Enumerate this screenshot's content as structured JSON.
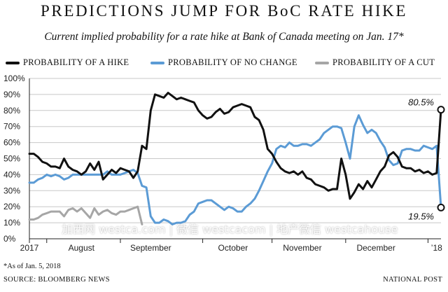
{
  "header": {
    "title": "PREDICTIONS JUMP FOR BoC RATE HIKE",
    "subtitle": "Current implied probability for a rate hike at Bank of Canada meeting on Jan. 17*"
  },
  "footer": {
    "footnote": "*As of Jan. 5, 2018",
    "source": "SOURCE: BLOOMBERG NEWS",
    "credit": "NATIONAL POST"
  },
  "watermark": "加西网 westca.com | 微信 westcacom | 地产微信 westcahouse",
  "colors": {
    "hike": "#111111",
    "no_change": "#5b9bd5",
    "cut": "#a6a6a6",
    "grid": "#c8c8c8",
    "background": "#ffffff"
  },
  "chart_data": {
    "type": "line",
    "x_unit": "trading-day index (0 = start of 2017 data, ~Jul 2017; 95 = Jan. 5, 2018)",
    "xlim": [
      0,
      95
    ],
    "ylim": [
      0,
      100
    ],
    "y_tick_labels": [
      "0%",
      "10%",
      "20%",
      "30%",
      "40%",
      "50%",
      "60%",
      "70%",
      "80%",
      "90%",
      "100%"
    ],
    "y_ticks": [
      0,
      10,
      20,
      30,
      40,
      50,
      60,
      70,
      80,
      90,
      100
    ],
    "x_tick_labels": [
      {
        "label": "2017",
        "x": 0
      },
      {
        "label": "August",
        "x": 12
      },
      {
        "label": "September",
        "x": 28
      },
      {
        "label": "October",
        "x": 47
      },
      {
        "label": "November",
        "x": 63
      },
      {
        "label": "December",
        "x": 80
      },
      {
        "label": "’18",
        "x": 94
      }
    ],
    "x_tick_marks": [
      0,
      4,
      21,
      40,
      56,
      73,
      92
    ],
    "grid": "horizontal",
    "legend_position": "top",
    "annotations": [
      {
        "text": "80.5%",
        "series": "hike",
        "x": 95,
        "y": 80.5
      },
      {
        "text": "19.5%",
        "series": "no_change",
        "x": 95,
        "y": 19.5
      }
    ],
    "series": [
      {
        "key": "hike",
        "name": "PROBABILITY OF A HIKE",
        "color": "#111111",
        "values": [
          53,
          53,
          51,
          48,
          47,
          45,
          45,
          44,
          50,
          45,
          43,
          42,
          40,
          42,
          47,
          43,
          48,
          37,
          40,
          43,
          41,
          44,
          43,
          42,
          38,
          42,
          58,
          56,
          80,
          90,
          89,
          88,
          91,
          89,
          87,
          88,
          87,
          86,
          85,
          80,
          77,
          75,
          76,
          79,
          81,
          78,
          79,
          82,
          83,
          84,
          83,
          82,
          76,
          74,
          68,
          56,
          53,
          48,
          44,
          42,
          41,
          42,
          40,
          42,
          38,
          37,
          34,
          33,
          32,
          30,
          31,
          31,
          50,
          40,
          25,
          29,
          34,
          31,
          36,
          32,
          37,
          42,
          45,
          52,
          54,
          51,
          45,
          44,
          44,
          42,
          43,
          41,
          42,
          40,
          41,
          80.5
        ]
      },
      {
        "key": "no_change",
        "name": "PROBABILITY OF NO CHANGE",
        "color": "#5b9bd5",
        "values": [
          35,
          35,
          37,
          38,
          40,
          39,
          40,
          39,
          37,
          38,
          40,
          40,
          40,
          40,
          40,
          40,
          40,
          40,
          42,
          40,
          40,
          40,
          41,
          42,
          43,
          41,
          33,
          32,
          14,
          10,
          10,
          12,
          11,
          9,
          10,
          10,
          11,
          15,
          17,
          22,
          23,
          24,
          24,
          22,
          20,
          18,
          20,
          19,
          17,
          17,
          20,
          22,
          25,
          30,
          36,
          42,
          47,
          56,
          58,
          57,
          60,
          58,
          58,
          59,
          59,
          58,
          60,
          62,
          66,
          68,
          70,
          70,
          69,
          60,
          50,
          70,
          77,
          71,
          66,
          68,
          66,
          61,
          57,
          49,
          46,
          47,
          55,
          56,
          56,
          55,
          55,
          58,
          57,
          56,
          58,
          19.5
        ]
      },
      {
        "key": "cut",
        "name": "PROBABILITY OF A CUT",
        "color": "#a6a6a6",
        "values": [
          12,
          12,
          13,
          15,
          16,
          17,
          17,
          17,
          14,
          18,
          19,
          17,
          19,
          16,
          13,
          19,
          15,
          17,
          18,
          16,
          15,
          17,
          17,
          18,
          19,
          20,
          9
        ]
      }
    ]
  }
}
